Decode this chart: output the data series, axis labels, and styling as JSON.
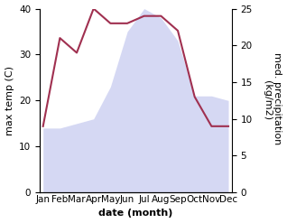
{
  "months": [
    "Jan",
    "Feb",
    "Mar",
    "Apr",
    "May",
    "Jun",
    "Jul",
    "Aug",
    "Sep",
    "Oct",
    "Nov",
    "Dec"
  ],
  "month_x": [
    0,
    1,
    2,
    3,
    4,
    5,
    6,
    7,
    8,
    9,
    10,
    11
  ],
  "max_temp": [
    14,
    14,
    15,
    16,
    23,
    35,
    40,
    38,
    33,
    21,
    21,
    20
  ],
  "med_precip": [
    9,
    21,
    19,
    25,
    23,
    23,
    24,
    24,
    22,
    13,
    9,
    9
  ],
  "temp_fill_color": "#c8ccf0",
  "precip_color": "#a03050",
  "temp_ylim": [
    0,
    40
  ],
  "precip_ylim": [
    0,
    25
  ],
  "xlabel": "date (month)",
  "ylabel_left": "max temp (C)",
  "ylabel_right": "med. precipitation \n(kg/m2)",
  "label_fontsize": 8,
  "tick_fontsize": 7.5
}
